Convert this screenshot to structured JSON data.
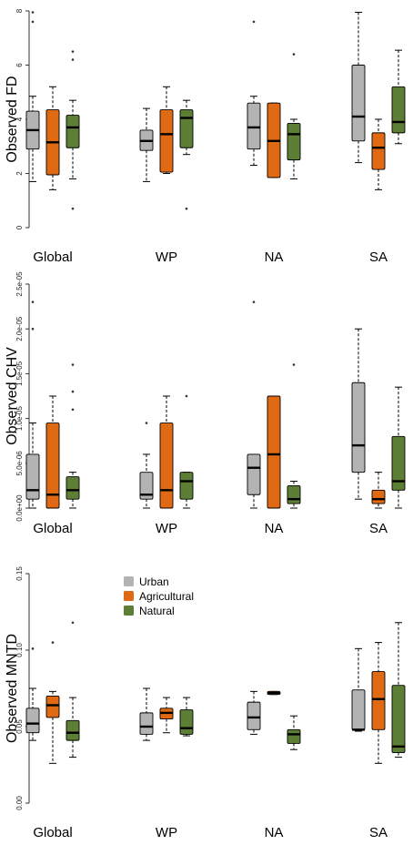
{
  "colors": {
    "Urban": "#b3b3b3",
    "Agricultural": "#e06a14",
    "Natural": "#5c7f35"
  },
  "legend": {
    "placement": "top-left",
    "entries": [
      "Urban",
      "Agricultural",
      "Natural"
    ]
  },
  "chart_data": [
    {
      "type": "box",
      "ylabel": "Observed FD",
      "ylim": [
        0,
        8
      ],
      "yticks": [
        "0",
        "2",
        "4",
        "6",
        "8"
      ],
      "categories": [
        "Global",
        "WP",
        "NA",
        "SA"
      ],
      "series": [
        {
          "name": "Urban",
          "boxes": [
            {
              "whislo": 1.7,
              "q1": 2.9,
              "med": 3.6,
              "q3": 4.3,
              "whishi": 4.85,
              "outliers": [
                7.6,
                7.95
              ]
            },
            {
              "whislo": 1.7,
              "q1": 2.85,
              "med": 3.2,
              "q3": 3.6,
              "whishi": 4.4,
              "outliers": []
            },
            {
              "whislo": 2.3,
              "q1": 2.9,
              "med": 3.7,
              "q3": 4.6,
              "whishi": 4.85,
              "outliers": [
                7.6
              ]
            },
            {
              "whislo": 2.4,
              "q1": 3.2,
              "med": 4.1,
              "q3": 6.0,
              "whishi": 7.95,
              "outliers": []
            }
          ]
        },
        {
          "name": "Agricultural",
          "boxes": [
            {
              "whislo": 1.4,
              "q1": 1.95,
              "med": 3.15,
              "q3": 4.35,
              "whishi": 5.2,
              "outliers": []
            },
            {
              "whislo": 2.0,
              "q1": 2.05,
              "med": 3.45,
              "q3": 4.35,
              "whishi": 5.2,
              "outliers": []
            },
            {
              "whislo": 1.85,
              "q1": 1.85,
              "med": 3.2,
              "q3": 4.6,
              "whishi": 4.6,
              "outliers": []
            },
            {
              "whislo": 1.4,
              "q1": 2.15,
              "med": 2.95,
              "q3": 3.5,
              "whishi": 4.0,
              "outliers": []
            }
          ]
        },
        {
          "name": "Natural",
          "boxes": [
            {
              "whislo": 1.8,
              "q1": 2.95,
              "med": 3.7,
              "q3": 4.15,
              "whishi": 4.7,
              "outliers": [
                0.7,
                6.2,
                6.5
              ]
            },
            {
              "whislo": 2.7,
              "q1": 2.95,
              "med": 4.05,
              "q3": 4.35,
              "whishi": 4.7,
              "outliers": [
                0.7
              ]
            },
            {
              "whislo": 1.8,
              "q1": 2.5,
              "med": 3.45,
              "q3": 3.85,
              "whishi": 4.0,
              "outliers": [
                6.4
              ]
            },
            {
              "whislo": 3.1,
              "q1": 3.5,
              "med": 3.9,
              "q3": 5.2,
              "whishi": 6.55,
              "outliers": []
            }
          ]
        }
      ]
    },
    {
      "type": "box",
      "ylabel": "Observed CHV",
      "ylim": [
        0,
        2.5e-05
      ],
      "yticks": [
        "0.0e+00",
        "5.0e-06",
        "1.0e-05",
        "1.5e-05",
        "2.0e-05",
        "2.5e-05"
      ],
      "categories": [
        "Global",
        "WP",
        "NA",
        "SA"
      ],
      "series": [
        {
          "name": "Urban",
          "boxes": [
            {
              "whislo": 0,
              "q1": 1e-06,
              "med": 2e-06,
              "q3": 6e-06,
              "whishi": 9.5e-06,
              "outliers": [
                2e-05,
                2.3e-05
              ]
            },
            {
              "whislo": 0,
              "q1": 1e-06,
              "med": 1.5e-06,
              "q3": 4e-06,
              "whishi": 6e-06,
              "outliers": [
                9.5e-06
              ]
            },
            {
              "whislo": 0,
              "q1": 1.5e-06,
              "med": 4.5e-06,
              "q3": 6e-06,
              "whishi": 6e-06,
              "outliers": [
                2.3e-05
              ]
            },
            {
              "whislo": 1e-06,
              "q1": 4e-06,
              "med": 7e-06,
              "q3": 1.4e-05,
              "whishi": 2e-05,
              "outliers": []
            }
          ]
        },
        {
          "name": "Agricultural",
          "boxes": [
            {
              "whislo": 0,
              "q1": 0,
              "med": 1.5e-06,
              "q3": 9.5e-06,
              "whishi": 1.25e-05,
              "outliers": []
            },
            {
              "whislo": 0,
              "q1": 0,
              "med": 2e-06,
              "q3": 9.5e-06,
              "whishi": 1.25e-05,
              "outliers": []
            },
            {
              "whislo": 0,
              "q1": 0,
              "med": 6e-06,
              "q3": 1.25e-05,
              "whishi": 1.25e-05,
              "outliers": []
            },
            {
              "whislo": 0,
              "q1": 5e-07,
              "med": 1e-06,
              "q3": 2e-06,
              "whishi": 4e-06,
              "outliers": []
            }
          ]
        },
        {
          "name": "Natural",
          "boxes": [
            {
              "whislo": 0,
              "q1": 1e-06,
              "med": 2e-06,
              "q3": 3.5e-06,
              "whishi": 4e-06,
              "outliers": [
                1.1e-05,
                1.3e-05,
                1.6e-05
              ]
            },
            {
              "whislo": 0,
              "q1": 1e-06,
              "med": 3e-06,
              "q3": 4e-06,
              "whishi": 4e-06,
              "outliers": [
                1.25e-05
              ]
            },
            {
              "whislo": 0,
              "q1": 5e-07,
              "med": 1e-06,
              "q3": 2.5e-06,
              "whishi": 3e-06,
              "outliers": [
                1.6e-05
              ]
            },
            {
              "whislo": 0,
              "q1": 2e-06,
              "med": 3e-06,
              "q3": 8e-06,
              "whishi": 1.35e-05,
              "outliers": []
            }
          ]
        }
      ]
    },
    {
      "type": "box",
      "ylabel": "Observed MNTD",
      "ylim": [
        0,
        0.15
      ],
      "yticks": [
        "0.00",
        "0.05",
        "0.10",
        "0.15"
      ],
      "categories": [
        "Global",
        "WP",
        "NA",
        "SA"
      ],
      "series": [
        {
          "name": "Urban",
          "boxes": [
            {
              "whislo": 0.041,
              "q1": 0.046,
              "med": 0.052,
              "q3": 0.062,
              "whishi": 0.075,
              "outliers": [
                0.101
              ]
            },
            {
              "whislo": 0.041,
              "q1": 0.045,
              "med": 0.05,
              "q3": 0.059,
              "whishi": 0.075,
              "outliers": []
            },
            {
              "whislo": 0.045,
              "q1": 0.048,
              "med": 0.056,
              "q3": 0.066,
              "whishi": 0.073,
              "outliers": []
            },
            {
              "whislo": 0.047,
              "q1": 0.048,
              "med": 0.048,
              "q3": 0.074,
              "whishi": 0.101,
              "outliers": []
            }
          ]
        },
        {
          "name": "Agricultural",
          "boxes": [
            {
              "whislo": 0.026,
              "q1": 0.056,
              "med": 0.064,
              "q3": 0.07,
              "whishi": 0.073,
              "outliers": [
                0.105
              ]
            },
            {
              "whislo": 0.046,
              "q1": 0.055,
              "med": 0.059,
              "q3": 0.062,
              "whishi": 0.069,
              "outliers": []
            },
            {
              "whislo": 0.071,
              "q1": 0.071,
              "med": 0.072,
              "q3": 0.073,
              "whishi": 0.073,
              "outliers": []
            },
            {
              "whislo": 0.026,
              "q1": 0.048,
              "med": 0.068,
              "q3": 0.086,
              "whishi": 0.105,
              "outliers": []
            }
          ]
        },
        {
          "name": "Natural",
          "boxes": [
            {
              "whislo": 0.03,
              "q1": 0.041,
              "med": 0.046,
              "q3": 0.054,
              "whishi": 0.069,
              "outliers": [
                0.118
              ]
            },
            {
              "whislo": 0.044,
              "q1": 0.045,
              "med": 0.049,
              "q3": 0.061,
              "whishi": 0.069,
              "outliers": []
            },
            {
              "whislo": 0.035,
              "q1": 0.039,
              "med": 0.045,
              "q3": 0.048,
              "whishi": 0.057,
              "outliers": []
            },
            {
              "whislo": 0.03,
              "q1": 0.033,
              "med": 0.037,
              "q3": 0.077,
              "whishi": 0.118,
              "outliers": []
            }
          ]
        }
      ]
    }
  ]
}
